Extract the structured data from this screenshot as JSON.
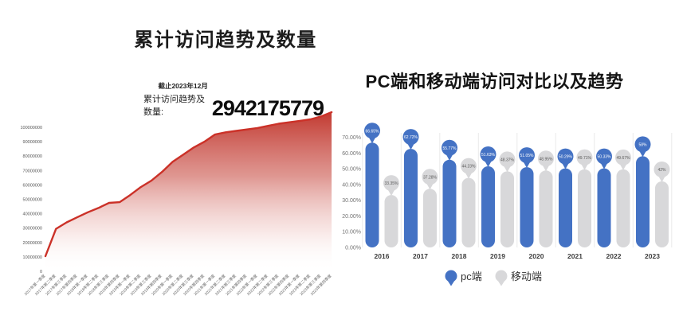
{
  "page": {
    "background": "#ffffff"
  },
  "chart_data": [
    {
      "type": "area",
      "title": "累计访问趋势及数量",
      "subtitle": "截止2023年12月",
      "total_label": "累计访问趋势及数量:",
      "total_value": "2942175779",
      "x": [
        "2017年第一季度",
        "2017年第二季度",
        "2017年第三季度",
        "2017年第四季度",
        "2018年第一季度",
        "2018年第二季度",
        "2018年第三季度",
        "2018年第四季度",
        "2019年第一季度",
        "2019年第二季度",
        "2019年第三季度",
        "2019年第四季度",
        "2020年第一季度",
        "2020年第二季度",
        "2020年第三季度",
        "2020年第四季度",
        "2021年第一季度",
        "2021年第二季度",
        "2021年第三季度",
        "2021年第四季度",
        "2022年第一季度",
        "2022年第二季度",
        "2022年第三季度",
        "2022年第四季度",
        "2023年第一季度",
        "2023年第二季度",
        "2023年第三季度",
        "2023年第四季度"
      ],
      "values": [
        10500000,
        29500000,
        34000000,
        37500000,
        41000000,
        44000000,
        47500000,
        48000000,
        53000000,
        58500000,
        63000000,
        69000000,
        76000000,
        81000000,
        86000000,
        90000000,
        95000000,
        96500000,
        97500000,
        98500000,
        99500000,
        101000000,
        102500000,
        103500000,
        104500000,
        105500000,
        107500000,
        110500000
      ],
      "y_ticks": [
        "100000000",
        "90000000",
        "80000000",
        "70000000",
        "60000000",
        "50000000",
        "40000000",
        "30000000",
        "20000000",
        "10000000",
        "0"
      ],
      "ylim": [
        0,
        100000000
      ],
      "grid": false,
      "legend_position": "none",
      "line_color": "#cb3128",
      "fill_stops": [
        {
          "offset": "0%",
          "color": "#c23a31",
          "opacity": 1
        },
        {
          "offset": "40%",
          "color": "#d4736c",
          "opacity": 0.75
        },
        {
          "offset": "75%",
          "color": "#ecbcb8",
          "opacity": 0.35
        },
        {
          "offset": "100%",
          "color": "#ffffff",
          "opacity": 0
        }
      ]
    },
    {
      "type": "bar",
      "title": "PC端和移动端访问对比以及趋势",
      "categories": [
        "2016",
        "2017",
        "2018",
        "2019",
        "2020",
        "2021",
        "2022",
        "2023"
      ],
      "series": [
        {
          "name": "pc端",
          "color": "#4472c4",
          "label_color": "#ffffff",
          "values": [
            66.65,
            62.72,
            55.77,
            51.63,
            51.05,
            50.29,
            50.33,
            58
          ],
          "labels": [
            "66.65%",
            "62.72%",
            "55.77%",
            "51.63%",
            "51.05%",
            "50.29%",
            "50.33%",
            "58%"
          ]
        },
        {
          "name": "移动端",
          "color": "#d8d8da",
          "label_color": "#595959",
          "values": [
            33.35,
            37.28,
            44.23,
            48.37,
            48.95,
            49.71,
            49.67,
            42
          ],
          "labels": [
            "33.35%",
            "37.28%",
            "44.23%",
            "48.37%",
            "48.95%",
            "49.71%",
            "49.67%",
            "42%"
          ]
        }
      ],
      "y_ticks": [
        "70.00%",
        "60.00%",
        "50.00%",
        "40.00%",
        "30.00%",
        "20.00%",
        "10.00%",
        "0.00%"
      ],
      "ylim": [
        0,
        70
      ],
      "grid": false,
      "legend_position": "bottom",
      "separator_color": "#eaeaea"
    }
  ]
}
